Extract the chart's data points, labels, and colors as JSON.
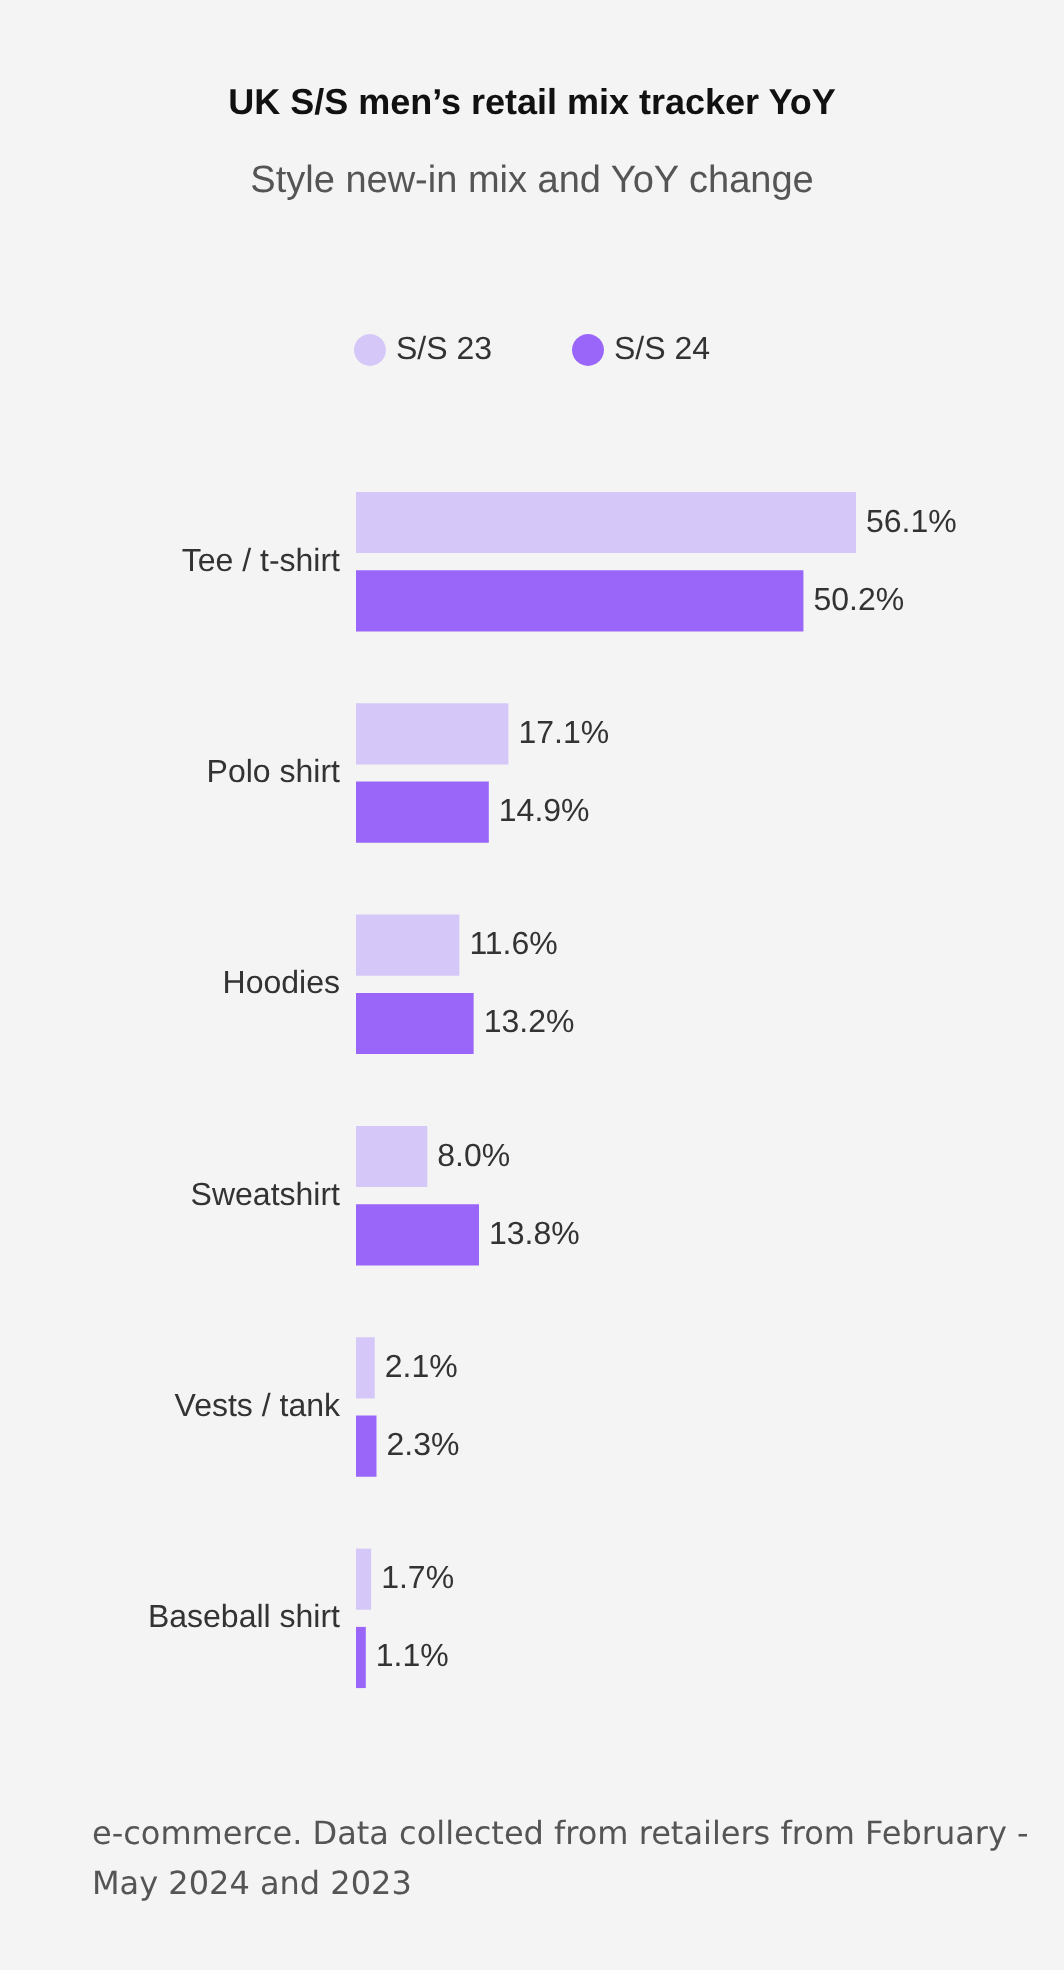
{
  "chart_data": {
    "type": "bar",
    "orientation": "horizontal",
    "title": "UK S/S men’s retail mix tracker YoY",
    "subtitle": "Style new-in mix and YoY change",
    "categories": [
      "Tee / t-shirt",
      "Polo shirt",
      "Hoodies",
      "Sweatshirt",
      "Vests / tank",
      "Baseball shirt"
    ],
    "series": [
      {
        "name": "S/S 23",
        "color": "#d5c8f8",
        "values": [
          56.1,
          17.1,
          11.6,
          8.0,
          2.1,
          1.7
        ],
        "value_labels": [
          "56.1%",
          "17.1%",
          "11.6%",
          "8.0%",
          "2.1%",
          "1.7%"
        ]
      },
      {
        "name": "S/S 24",
        "color": "#9966f9",
        "values": [
          50.2,
          14.9,
          13.2,
          13.8,
          2.3,
          1.1
        ],
        "value_labels": [
          "50.2%",
          "14.9%",
          "13.2%",
          "13.8%",
          "2.3%",
          "1.1%"
        ]
      }
    ],
    "legend": "top",
    "annotations": [
      "e-commerce. Data collected from retailers from February - May 2024 and 2023"
    ]
  }
}
